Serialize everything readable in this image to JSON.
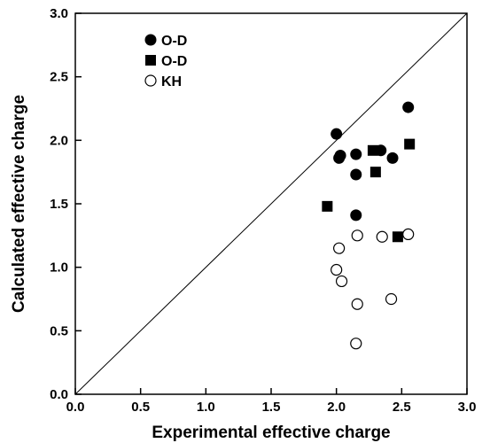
{
  "chart_data": {
    "type": "scatter",
    "title": "",
    "xlabel": "Experimental effective charge",
    "ylabel": "Calculated effective charge",
    "xlim": [
      0.0,
      3.0
    ],
    "ylim": [
      0.0,
      3.0
    ],
    "x_ticks": [
      "0.0",
      "0.5",
      "1.0",
      "1.5",
      "2.0",
      "2.5",
      "3.0"
    ],
    "y_ticks": [
      "0.0",
      "0.5",
      "1.0",
      "1.5",
      "2.0",
      "2.5",
      "3.0"
    ],
    "grid": false,
    "legend_position": "top-left",
    "reference_line": {
      "type": "diagonal",
      "from": [
        0,
        0
      ],
      "to": [
        3,
        3
      ]
    },
    "series": [
      {
        "name": "O-D",
        "marker": "filled-circle",
        "points": [
          {
            "x": 2.0,
            "y": 2.05
          },
          {
            "x": 2.02,
            "y": 1.86
          },
          {
            "x": 2.03,
            "y": 1.88
          },
          {
            "x": 2.15,
            "y": 1.89
          },
          {
            "x": 2.15,
            "y": 1.73
          },
          {
            "x": 2.34,
            "y": 1.92
          },
          {
            "x": 2.43,
            "y": 1.86
          },
          {
            "x": 2.55,
            "y": 2.26
          },
          {
            "x": 2.15,
            "y": 1.41
          }
        ]
      },
      {
        "name": "O-D",
        "marker": "filled-square",
        "points": [
          {
            "x": 1.93,
            "y": 1.48
          },
          {
            "x": 2.28,
            "y": 1.92
          },
          {
            "x": 2.3,
            "y": 1.75
          },
          {
            "x": 2.56,
            "y": 1.97
          },
          {
            "x": 2.47,
            "y": 1.24
          }
        ]
      },
      {
        "name": "KH",
        "marker": "open-circle",
        "points": [
          {
            "x": 2.02,
            "y": 1.15
          },
          {
            "x": 2.0,
            "y": 0.98
          },
          {
            "x": 2.04,
            "y": 0.89
          },
          {
            "x": 2.16,
            "y": 1.25
          },
          {
            "x": 2.35,
            "y": 1.24
          },
          {
            "x": 2.55,
            "y": 1.26
          },
          {
            "x": 2.42,
            "y": 0.75
          },
          {
            "x": 2.16,
            "y": 0.71
          },
          {
            "x": 2.15,
            "y": 0.4
          }
        ]
      }
    ]
  }
}
